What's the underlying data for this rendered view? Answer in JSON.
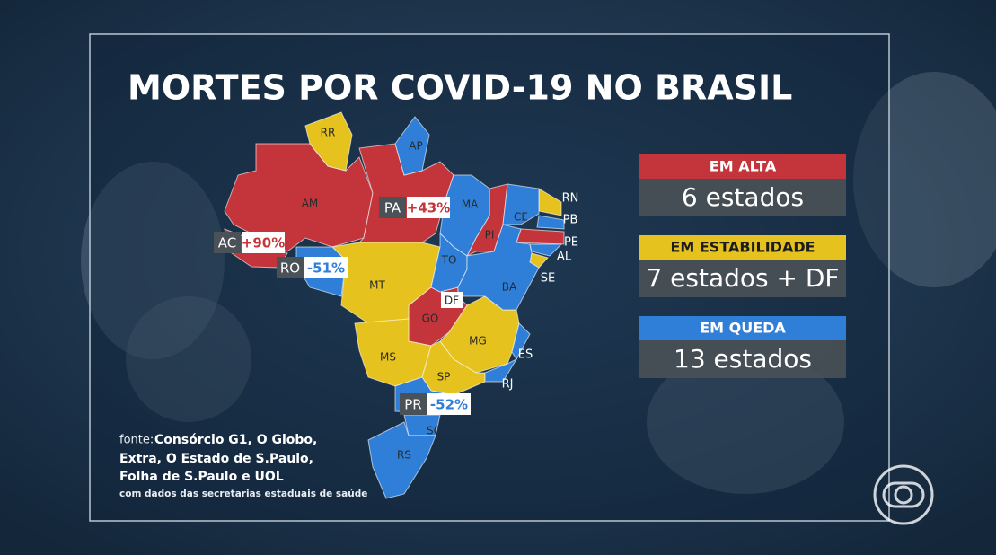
{
  "title": "MORTES POR COVID-19 NO BRASIL",
  "groups": [
    {
      "label": "EM ALTA",
      "count": "6 estados",
      "color": "#c3353b",
      "text_color": "#ffffff",
      "states": [
        {
          "label": "AM"
        },
        {
          "label": "PA",
          "change": "+43%"
        },
        {
          "label": "AC",
          "change": "+90%"
        },
        {
          "label": "PI"
        },
        {
          "label": "GO"
        },
        {
          "label": "PE"
        }
      ]
    },
    {
      "label": "EM ESTABILIDADE",
      "count": "7 estados + DF",
      "color": "#e6c21e",
      "text_color": "#1c1c1c",
      "states": [
        {
          "label": "RR"
        },
        {
          "label": "MT"
        },
        {
          "label": "MS"
        },
        {
          "label": "MG"
        },
        {
          "label": "SP"
        },
        {
          "label": "RN"
        },
        {
          "label": "SE"
        },
        {
          "label": "DF"
        }
      ]
    },
    {
      "label": "EM QUEDA",
      "count": "13 estados",
      "color": "#2f7fd8",
      "text_color": "#ffffff",
      "states": [
        {
          "label": "AP"
        },
        {
          "label": "MA"
        },
        {
          "label": "TO"
        },
        {
          "label": "CE"
        },
        {
          "label": "BA"
        },
        {
          "label": "RO",
          "change": "-51%"
        },
        {
          "label": "PR",
          "change": "-52%"
        },
        {
          "label": "SC"
        },
        {
          "label": "RS"
        },
        {
          "label": "PB"
        },
        {
          "label": "AL"
        },
        {
          "label": "ES"
        },
        {
          "label": "RJ"
        }
      ]
    }
  ],
  "source": {
    "label": "fonte:",
    "lines": [
      "Consórcio G1, O Globo,",
      "Extra, O Estado de S.Paulo,",
      "Folha de S.Paulo e UOL"
    ],
    "note": "com dados das secretarias estaduais de saúde"
  }
}
